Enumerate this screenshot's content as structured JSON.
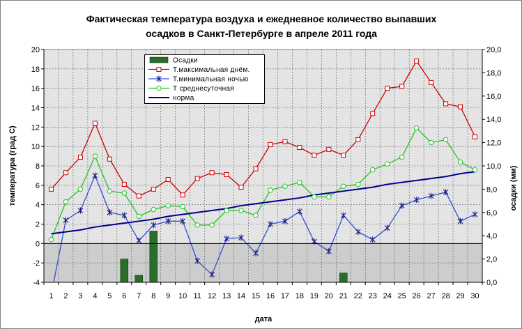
{
  "chart_data": {
    "type": "line",
    "title": [
      "Фактическая температура воздуха и ежедневное количество выпавших",
      "осадков в Санкт-Петербурге в апреле 2011 года"
    ],
    "xlabel": "дата",
    "ylabel": "температура (град С)",
    "y2label": "осадки (мм)",
    "ylim": [
      -4,
      20
    ],
    "y2lim": [
      0,
      20
    ],
    "yticks": [
      "-4",
      "-2",
      "0",
      "2",
      "4",
      "6",
      "8",
      "10",
      "12",
      "14",
      "16",
      "18",
      "20"
    ],
    "y2ticks": [
      "0,0",
      "2,0",
      "4,0",
      "6,0",
      "8,0",
      "10,0",
      "12,0",
      "14,0",
      "16,0",
      "18,0",
      "20,0"
    ],
    "grid": true,
    "legend": "top-left",
    "categories": [
      "1",
      "2",
      "3",
      "4",
      "5",
      "6",
      "7",
      "8",
      "9",
      "10",
      "11",
      "12",
      "13",
      "14",
      "15",
      "16",
      "17",
      "18",
      "19",
      "20",
      "21",
      "22",
      "23",
      "24",
      "25",
      "26",
      "27",
      "28",
      "29",
      "30"
    ],
    "series": [
      {
        "name": "Осадки",
        "type": "bar",
        "axis": "right",
        "color": "#2a6e2a",
        "values": [
          0,
          0,
          0,
          0,
          0,
          2.0,
          0.6,
          4.4,
          0,
          0,
          0,
          0,
          0,
          0,
          0,
          0,
          0,
          0,
          0,
          0,
          0.8,
          0,
          0,
          0,
          0,
          0,
          0,
          0,
          0,
          0
        ]
      },
      {
        "name": "Т.максимальная днём.",
        "type": "line",
        "axis": "left",
        "color": "#cc0000",
        "marker": "square",
        "values": [
          5.6,
          7.3,
          8.9,
          12.4,
          8.7,
          6.1,
          4.9,
          5.6,
          6.6,
          5.0,
          6.7,
          7.3,
          7.1,
          5.8,
          7.7,
          10.2,
          10.5,
          9.9,
          9.1,
          9.7,
          9.1,
          10.7,
          13.4,
          16.0,
          16.2,
          18.8,
          16.6,
          14.4,
          14.1,
          11.0
        ]
      },
      {
        "name": "Т.минимальная ночью",
        "type": "line",
        "axis": "left",
        "color": "#2f4fd6",
        "marker": "asterisk",
        "marker_color": "#1a1a80",
        "values": [
          -5.3,
          2.4,
          3.4,
          7.0,
          3.2,
          2.9,
          0.3,
          1.9,
          2.3,
          2.3,
          -1.8,
          -3.2,
          0.5,
          0.6,
          -1.0,
          2.0,
          2.3,
          3.3,
          0.2,
          -0.8,
          2.9,
          1.2,
          0.4,
          1.6,
          3.9,
          4.5,
          4.9,
          5.3,
          2.3,
          3.0
        ]
      },
      {
        "name": "Т среднесуточная",
        "type": "line",
        "axis": "left",
        "color": "#22c422",
        "marker": "circle",
        "values": [
          0.4,
          4.3,
          5.6,
          9.0,
          5.4,
          5.2,
          2.8,
          3.5,
          3.9,
          3.8,
          1.9,
          1.9,
          3.4,
          3.4,
          2.9,
          5.5,
          5.9,
          6.3,
          4.8,
          4.8,
          5.9,
          6.1,
          7.6,
          8.2,
          8.9,
          11.9,
          10.4,
          10.7,
          8.4,
          7.6
        ]
      },
      {
        "name": "норма",
        "type": "line",
        "axis": "left",
        "color": "#00008b",
        "marker": "none",
        "values": [
          1.0,
          1.2,
          1.4,
          1.7,
          1.9,
          2.1,
          2.3,
          2.5,
          2.8,
          3.0,
          3.2,
          3.4,
          3.6,
          3.9,
          4.1,
          4.3,
          4.5,
          4.7,
          5.0,
          5.2,
          5.4,
          5.6,
          5.8,
          6.1,
          6.3,
          6.5,
          6.7,
          6.9,
          7.2,
          7.4
        ]
      }
    ]
  }
}
